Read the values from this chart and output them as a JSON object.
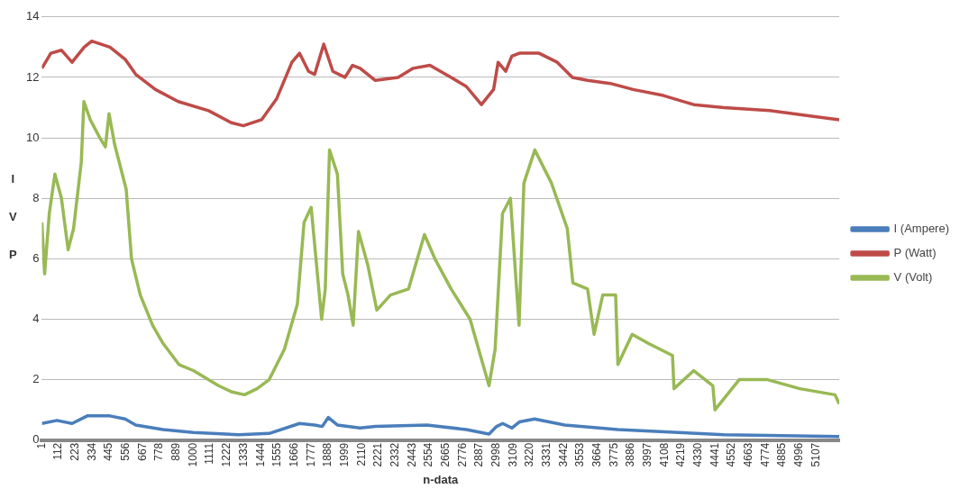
{
  "chart_data": {
    "type": "line",
    "xlabel": "n-data",
    "ylabel": "I V P",
    "xlim": [
      1,
      5260
    ],
    "xticks": [
      1,
      112,
      223,
      334,
      445,
      556,
      667,
      778,
      889,
      1000,
      1111,
      1222,
      1333,
      1444,
      1555,
      1666,
      1777,
      1888,
      1999,
      2110,
      2221,
      2332,
      2443,
      2554,
      2665,
      2776,
      2887,
      2998,
      3109,
      3220,
      3331,
      3442,
      3553,
      3664,
      3775,
      3886,
      3997,
      4108,
      4219,
      4330,
      4441,
      4552,
      4663,
      4774,
      4885,
      4996,
      5107
    ],
    "ylim": [
      0,
      14
    ],
    "yticks": [
      0,
      2,
      4,
      6,
      8,
      10,
      12,
      14
    ],
    "grid": "y",
    "legend": "right",
    "marker": "none",
    "line_style": "solid",
    "series": [
      {
        "name": "I (Ampere)",
        "color": "#4a7ebb",
        "x": [
          1,
          100,
          200,
          300,
          450,
          550,
          620,
          800,
          1000,
          1300,
          1500,
          1700,
          1800,
          1850,
          1890,
          1950,
          2100,
          2200,
          2540,
          2800,
          2950,
          3000,
          3040,
          3100,
          3150,
          3250,
          3450,
          3800,
          4200,
          4500,
          5260
        ],
        "values": [
          0.55,
          0.65,
          0.55,
          0.8,
          0.8,
          0.7,
          0.5,
          0.35,
          0.25,
          0.18,
          0.22,
          0.55,
          0.5,
          0.45,
          0.75,
          0.5,
          0.4,
          0.45,
          0.5,
          0.35,
          0.2,
          0.45,
          0.55,
          0.4,
          0.6,
          0.7,
          0.5,
          0.35,
          0.25,
          0.18,
          0.12
        ]
      },
      {
        "name": "P (Watt)",
        "color": "#be4b48",
        "x": [
          1,
          60,
          130,
          200,
          280,
          330,
          450,
          550,
          620,
          750,
          900,
          1100,
          1250,
          1330,
          1450,
          1550,
          1650,
          1700,
          1760,
          1800,
          1860,
          1920,
          2000,
          2050,
          2100,
          2200,
          2350,
          2450,
          2560,
          2700,
          2800,
          2900,
          2980,
          3010,
          3060,
          3100,
          3150,
          3280,
          3400,
          3500,
          3600,
          3750,
          3900,
          4100,
          4300,
          4500,
          4800,
          5100,
          5260
        ],
        "values": [
          12.3,
          12.8,
          12.9,
          12.5,
          13.0,
          13.2,
          13.0,
          12.6,
          12.1,
          11.6,
          11.2,
          10.9,
          10.5,
          10.4,
          10.6,
          11.3,
          12.5,
          12.8,
          12.2,
          12.1,
          13.1,
          12.2,
          12.0,
          12.4,
          12.3,
          11.9,
          12.0,
          12.3,
          12.4,
          12.0,
          11.7,
          11.1,
          11.6,
          12.5,
          12.2,
          12.7,
          12.8,
          12.8,
          12.5,
          12.0,
          11.9,
          11.8,
          11.6,
          11.4,
          11.1,
          11.0,
          10.9,
          10.7,
          10.6
        ]
      },
      {
        "name": "V (Volt)",
        "color": "#98b954",
        "x": [
          1,
          19,
          50,
          87,
          130,
          174,
          210,
          261,
          278,
          320,
          383,
          420,
          444,
          480,
          557,
          592,
          650,
          731,
          800,
          905,
          1000,
          1166,
          1250,
          1337,
          1420,
          1500,
          1600,
          1686,
          1730,
          1777,
          1846,
          1870,
          1898,
          1950,
          1985,
          2020,
          2054,
          2089,
          2150,
          2210,
          2300,
          2419,
          2524,
          2593,
          2700,
          2825,
          2950,
          2990,
          3039,
          3091,
          3148,
          3180,
          3252,
          3362,
          3466,
          3503,
          3600,
          3643,
          3700,
          3785,
          3800,
          3894,
          4000,
          4160,
          4170,
          4300,
          4426,
          4440,
          4600,
          4787,
          5000,
          5231,
          5260
        ],
        "values": [
          7.2,
          5.5,
          7.5,
          8.8,
          8.0,
          6.3,
          7.0,
          9.2,
          11.2,
          10.6,
          10.0,
          9.7,
          10.8,
          9.8,
          8.3,
          6.0,
          4.8,
          3.8,
          3.2,
          2.5,
          2.3,
          1.8,
          1.6,
          1.5,
          1.7,
          2.0,
          3.0,
          4.5,
          7.2,
          7.7,
          4.0,
          5.0,
          9.6,
          8.8,
          5.5,
          4.8,
          3.8,
          6.9,
          5.8,
          4.3,
          4.8,
          5.0,
          6.8,
          6.0,
          5.0,
          4.0,
          1.8,
          3.0,
          7.5,
          8.0,
          3.8,
          8.5,
          9.6,
          8.5,
          7.0,
          5.2,
          5.0,
          3.5,
          4.8,
          4.8,
          2.5,
          3.5,
          3.2,
          2.8,
          1.7,
          2.3,
          1.8,
          1.0,
          2.0,
          2.0,
          1.7,
          1.5,
          1.2
        ]
      }
    ]
  }
}
